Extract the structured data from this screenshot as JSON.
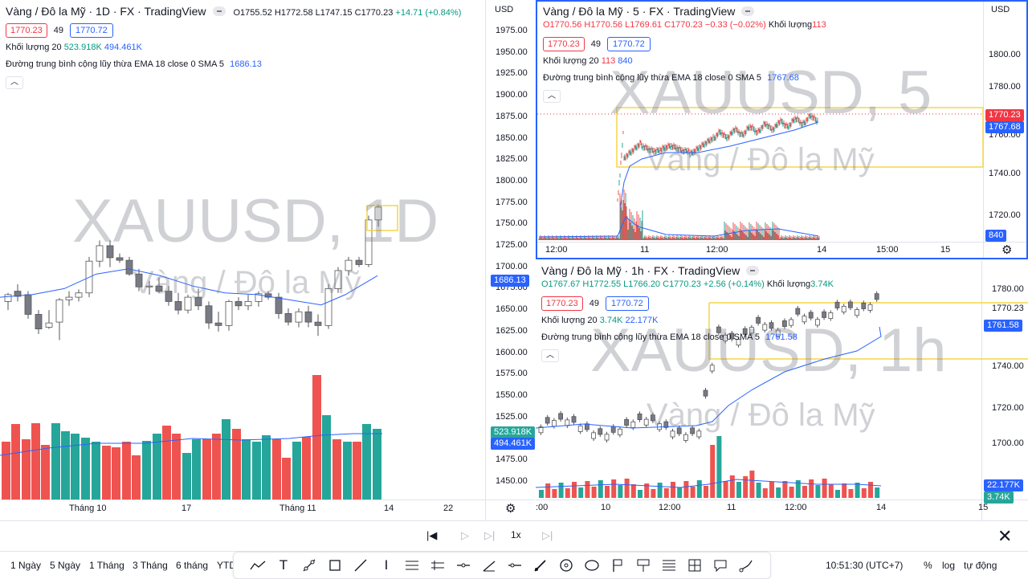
{
  "left": {
    "title": "Vàng / Đô la Mỹ · 1D · FX · TradingView",
    "ohlc": {
      "o": "O1755.52",
      "h": "H1772.58",
      "l": "L1747.15",
      "c": "C1770.23",
      "chg": "+14.71 (+0.84%)"
    },
    "bid": "1770.23",
    "spread": "49",
    "ask": "1770.72",
    "vol_label": "Khối lượng 20",
    "vol_a": "523.918K",
    "vol_b": "494.461K",
    "ema_label": "Đường trung bình cộng lũy thừa EMA 18 close 0 SMA 5",
    "ema_val": "1686.13",
    "watermark": "XAUUSD, 1D",
    "watermark_sub": "Vàng / Đô la Mỹ",
    "currency": "USD",
    "price_ticks": [
      "1975.00",
      "1950.00",
      "1925.00",
      "1900.00",
      "1875.00",
      "1850.00",
      "1825.00",
      "1800.00",
      "1775.00",
      "1750.00",
      "1725.00",
      "1700.00",
      "1675.00",
      "1650.00",
      "1625.00",
      "1600.00",
      "1575.00",
      "1550.00",
      "1525.00",
      "1500.00",
      "1475.00",
      "1450.00"
    ],
    "last_tag": "1770.23",
    "ema_tag": "1686.13",
    "vol_tag_a": "523.918K",
    "vol_tag_b": "494.461K",
    "time_labels": [
      "Tháng 10",
      "17",
      "Tháng 11",
      "14",
      "22"
    ]
  },
  "tr": {
    "title": "Vàng / Đô la Mỹ · 5 · FX · TradingView",
    "ohlc": {
      "o": "O1770.56",
      "h": "H1770.56",
      "l": "L1769.61",
      "c": "C1770.23",
      "chg": "−0.33 (−0.02%)"
    },
    "vol_inline": "Khối lượng",
    "vol_inline_val": "113",
    "bid": "1770.23",
    "spread": "49",
    "ask": "1770.72",
    "vol_label": "Khối lượng 20",
    "vol_a": "113",
    "vol_b": "840",
    "ema_label": "Đường trung bình cộng lũy thừa EMA 18 close 0 SMA 5",
    "ema_val": "1767.68",
    "watermark": "XAUUSD, 5",
    "watermark_sub": "Vàng / Đô la Mỹ",
    "currency": "USD",
    "price_ticks": [
      "1800.00",
      "1780.00",
      "1760.00",
      "1740.00",
      "1720.00"
    ],
    "last_tag": "1770.23",
    "ema_tag": "1767.68",
    "vol_tag": "840",
    "time_labels": [
      "12:00",
      "11",
      "12:00",
      "14",
      "15:00",
      "15"
    ]
  },
  "br": {
    "title": "Vàng / Đô la Mỹ · 1h · FX · TradingView",
    "ohlc": {
      "o": "O1767.67",
      "h": "H1772.55",
      "l": "L1766.20",
      "c": "C1770.23",
      "chg": "+2.56 (+0.14%)"
    },
    "vol_inline": "Khối lượng",
    "vol_inline_val": "3.74K",
    "bid": "1770.23",
    "spread": "49",
    "ask": "1770.72",
    "vol_label": "Khối lượng 20",
    "vol_a": "3.74K",
    "vol_b": "22.177K",
    "ema_label": "Đường trung bình cộng lũy thừa EMA 18 close 0 SMA 5",
    "ema_val": "1761.58",
    "watermark": "XAUUSD, 1h",
    "watermark_sub": "Vàng / Đô la Mỹ",
    "price_ticks": [
      "1780.00",
      "1770.23",
      "1740.00",
      "1720.00",
      "1700.00"
    ],
    "ema_tag": "1761.58",
    "vol_tag": "22.177K",
    "vol_tag2": "3.74K",
    "time_labels": [
      ":00",
      "10",
      "12:00",
      "11",
      "12:00",
      "14",
      "15"
    ]
  },
  "replay": {
    "speed": "1x"
  },
  "bottom": {
    "ranges": [
      "1 Ngày",
      "5 Ngày",
      "1 Tháng",
      "3 Tháng",
      "6 tháng",
      "YTD"
    ],
    "clock": "10:51:30 (UTC+7)",
    "pct": "%",
    "log": "log",
    "auto": "tự động"
  },
  "colors": {
    "up": "#26a69a",
    "down": "#ef5350",
    "ema": "#2962ff",
    "blue": "#2962ff",
    "red": "#f23645",
    "box": "#f5d547"
  }
}
